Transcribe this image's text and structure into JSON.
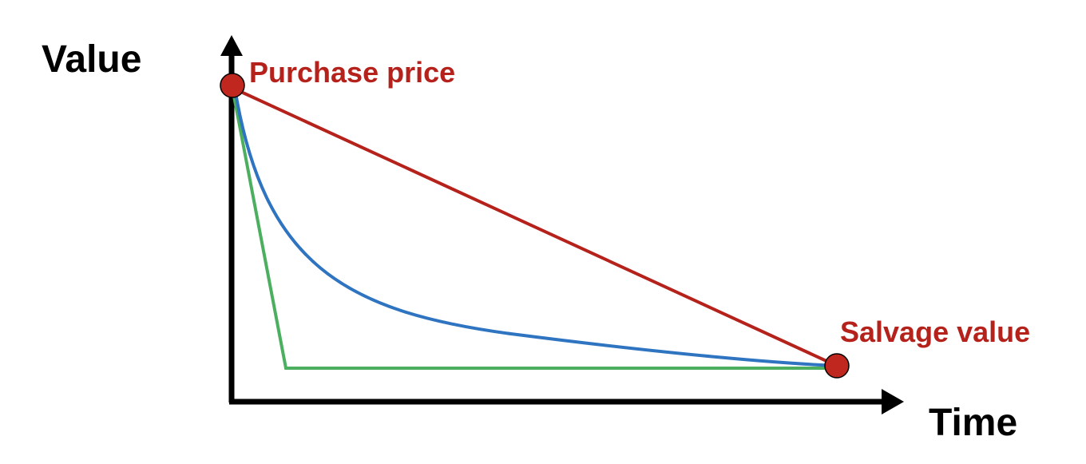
{
  "diagram": {
    "y_axis_label": "Value",
    "x_axis_label": "Time",
    "start_point_label": "Purchase price",
    "end_point_label": "Salvage value"
  },
  "colors": {
    "axis": "#000000",
    "label_accent": "#b5221b",
    "marker_fill": "#c0271e",
    "straight_line": "#b5221b",
    "curved_line": "#2f74c0",
    "sharp_drop_line": "#4caf60"
  },
  "curves": [
    {
      "id": "straight-line-decline",
      "color_key": "straight_line"
    },
    {
      "id": "accelerated-curve-decline",
      "color_key": "curved_line"
    },
    {
      "id": "immediate-drop-decline",
      "color_key": "sharp_drop_line"
    }
  ]
}
